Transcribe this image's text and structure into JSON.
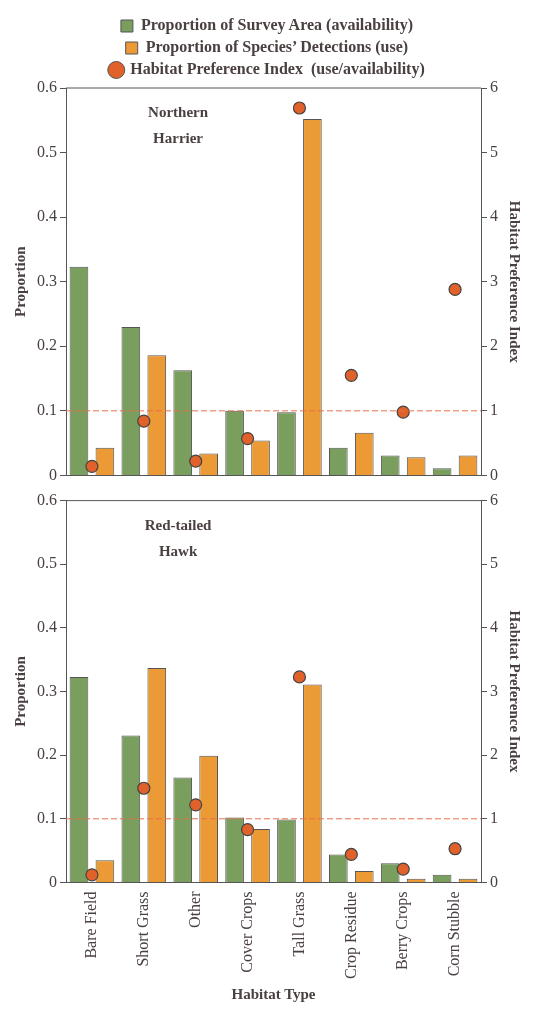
{
  "chart_data": [
    {
      "type": "bar",
      "annotations": [
        "Northern Harrier"
      ],
      "ylabel": "Proportion",
      "y2label": "Habitat Preference Index",
      "categories": [
        null,
        null,
        null,
        null,
        null,
        null,
        null,
        null
      ],
      "tick_labels": "y",
      "legend": "top",
      "ylim": [
        0,
        0.6
      ],
      "yticks": [
        0,
        0.1,
        0.2,
        0.3,
        0.4,
        0.5,
        0.6
      ],
      "y2lim": [
        0,
        6
      ],
      "y2ticks": [
        0,
        1,
        2,
        3,
        4,
        5,
        6
      ],
      "grid": false,
      "ref_lines": [
        {
          "axis": "y2",
          "value": 1,
          "color": "#e8704a",
          "line_style": "dashed"
        }
      ],
      "series": [
        {
          "name": "Proportion of Survey Area (availability)",
          "color": "#7a9e5e",
          "values": [
            0.323,
            0.23,
            0.163,
            0.1,
            0.098,
            0.043,
            0.031,
            0.011
          ]
        },
        {
          "name": "Proportion of Species’ Detections (use)",
          "color": "#eb9a35",
          "values": [
            0.043,
            0.186,
            0.034,
            0.054,
            0.552,
            0.066,
            0.028,
            0.031
          ]
        },
        {
          "name": "Habitat Preference Index  (use/availability)",
          "type": "scatter",
          "axis": "y2",
          "marker": "circle",
          "color": "#e0622a",
          "values": [
            0.14,
            0.84,
            0.22,
            0.57,
            5.69,
            1.55,
            0.98,
            2.88
          ]
        }
      ]
    },
    {
      "type": "bar",
      "annotations": [
        "Red-tailed Hawk"
      ],
      "xlabel": "Habitat Type",
      "ylabel": "Proportion",
      "y2label": "Habitat Preference Index",
      "categories": [
        "Bare Field",
        "Short Grass",
        "Other",
        "Cover Crops",
        "Tall Grass",
        "Crop Residue",
        "Berry Crops",
        "Corn Stubble"
      ],
      "ylim": [
        0,
        0.6
      ],
      "yticks": [
        0,
        0.1,
        0.2,
        0.3,
        0.4,
        0.5,
        0.6
      ],
      "y2lim": [
        0,
        6
      ],
      "y2ticks": [
        0,
        1,
        2,
        3,
        4,
        5,
        6
      ],
      "grid": false,
      "ref_lines": [
        {
          "axis": "y2",
          "value": 1,
          "color": "#e8704a",
          "line_style": "dashed"
        }
      ],
      "series": [
        {
          "color": "#7a9e5e",
          "values": [
            0.323,
            0.231,
            0.165,
            0.102,
            0.099,
            0.044,
            0.03,
            0.012
          ]
        },
        {
          "color": "#eb9a35",
          "values": [
            0.035,
            0.337,
            0.199,
            0.084,
            0.311,
            0.018,
            0.006,
            0.006
          ]
        },
        {
          "type": "scatter",
          "axis": "y2",
          "marker": "circle",
          "color": "#e0622a",
          "values": [
            0.12,
            1.48,
            1.22,
            0.83,
            3.23,
            0.44,
            0.21,
            0.53
          ]
        }
      ]
    }
  ]
}
